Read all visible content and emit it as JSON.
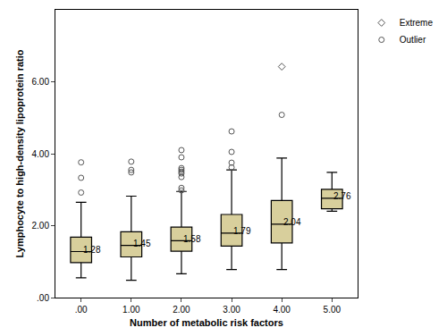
{
  "chart_data": {
    "type": "box",
    "x_label": "Number of metabolic risk factors",
    "y_label": "Lymphocyte to high-density lipoprotein ratio",
    "categories": [
      ".00",
      "1.00",
      "2.00",
      "3.00",
      "4.00",
      "5.00"
    ],
    "color": "#d8cf9c",
    "boxes": [
      {
        "lowerfence": 0.55,
        "q1": 0.97,
        "median": 1.28,
        "q3": 1.68,
        "upperfence": 2.65
      },
      {
        "lowerfence": 0.48,
        "q1": 1.13,
        "median": 1.45,
        "q3": 1.83,
        "upperfence": 2.82
      },
      {
        "lowerfence": 0.66,
        "q1": 1.29,
        "median": 1.58,
        "q3": 1.96,
        "upperfence": 2.95
      },
      {
        "lowerfence": 0.78,
        "q1": 1.43,
        "median": 1.79,
        "q3": 2.31,
        "upperfence": 3.55
      },
      {
        "lowerfence": 0.78,
        "q1": 1.52,
        "median": 2.04,
        "q3": 2.7,
        "upperfence": 3.88
      },
      {
        "lowerfence": 2.4,
        "q1": 2.47,
        "median": 2.76,
        "q3": 3.01,
        "upperfence": 3.48
      }
    ],
    "series": [
      {
        "name": "Extreme",
        "marker": "diamond-open",
        "color": "#555555",
        "x": [
          "4.00"
        ],
        "values": [
          6.42
        ]
      },
      {
        "name": "Outlier",
        "marker": "circle-open",
        "color": "#555555",
        "x": [
          ".00",
          ".00",
          ".00",
          "1.00",
          "1.00",
          "1.00",
          "2.00",
          "2.00",
          "2.00",
          "2.00",
          "2.00",
          "2.00",
          "2.00",
          "2.00",
          "2.00",
          "3.00",
          "3.00",
          "3.00",
          "3.00",
          "4.00"
        ],
        "values": [
          2.92,
          3.33,
          3.76,
          3.48,
          3.55,
          3.78,
          2.98,
          3.05,
          3.35,
          3.45,
          3.5,
          3.55,
          3.6,
          3.9,
          4.1,
          3.62,
          3.75,
          4.05,
          4.62,
          5.08
        ]
      }
    ],
    "ylim": [
      0,
      8
    ],
    "yticks": [
      {
        "value": 0,
        "label": ".00"
      },
      {
        "value": 2,
        "label": "2.00"
      },
      {
        "value": 4,
        "label": "4.00"
      },
      {
        "value": 6,
        "label": "6.00"
      }
    ],
    "data_labels": true,
    "legend": "top right",
    "grid": false
  }
}
